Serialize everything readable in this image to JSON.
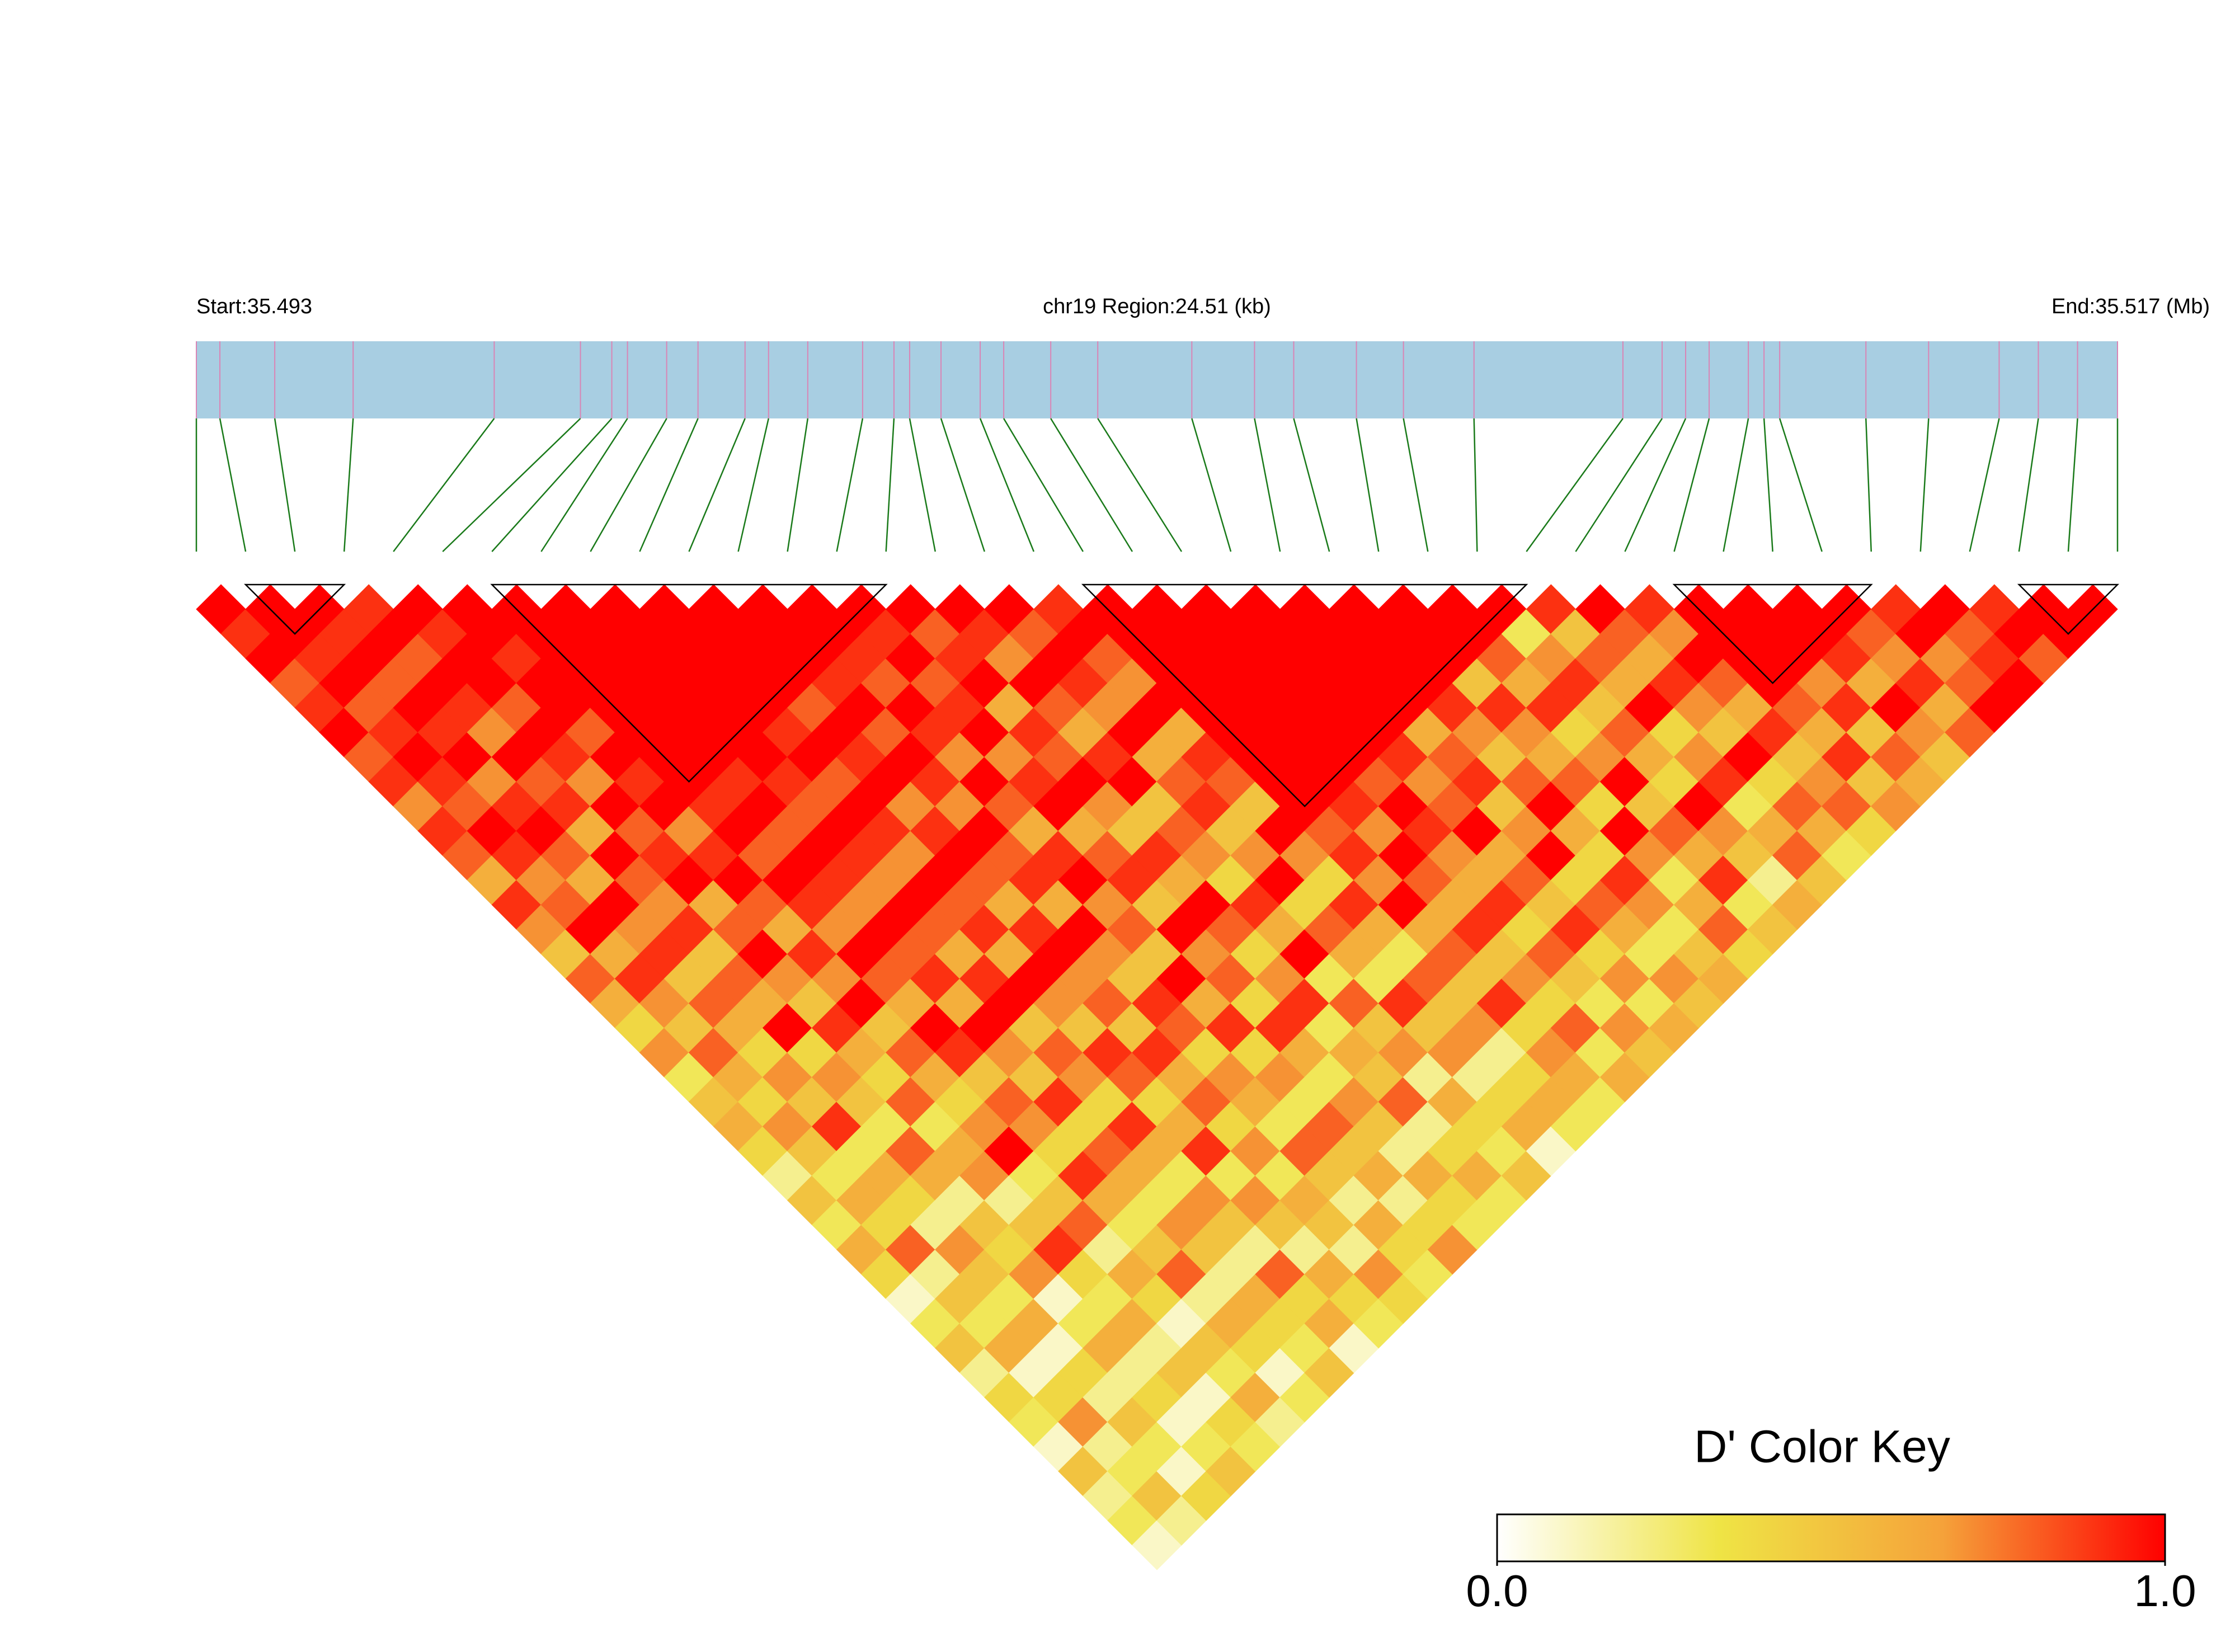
{
  "chart_data": {
    "type": "heatmap",
    "start_label": "Start:35.493",
    "title": "chr19 Region:24.51 (kb)",
    "end_label": "End:35.517 (Mb)",
    "xlim": [
      0,
      24.51
    ],
    "snp_positions": [
      0,
      0.3,
      1.0,
      2.0,
      3.8,
      4.9,
      5.3,
      5.5,
      6.0,
      6.4,
      7.0,
      7.3,
      7.8,
      8.5,
      8.9,
      9.1,
      9.5,
      10.0,
      10.3,
      10.9,
      11.5,
      12.7,
      13.5,
      14.0,
      14.8,
      15.4,
      16.3,
      18.2,
      18.7,
      19.0,
      19.3,
      19.8,
      20.0,
      20.2,
      21.3,
      22.1,
      23.0,
      23.5,
      24.0,
      24.51
    ],
    "bar_color": "#a8cee2",
    "snp_line_color": "#d985b5",
    "connector_color": "#1a7a1a",
    "block_outline_color": "#000000",
    "blocks": [
      [
        1,
        3
      ],
      [
        6,
        14
      ],
      [
        18,
        27
      ],
      [
        30,
        34
      ],
      [
        37,
        39
      ]
    ],
    "ld_matrix": [
      [
        1,
        0.9,
        1,
        0.8,
        0.9,
        1,
        0.8,
        0.9,
        0.7,
        0.9,
        0.8,
        0.6,
        0.9,
        0.7,
        0.5,
        0.8,
        0.6,
        0.4,
        0.7,
        0.3,
        0.5,
        0.6,
        0.4,
        0.2,
        0.5,
        0.3,
        0.6,
        0.4,
        0.1,
        0.3,
        0.5,
        0.2,
        0.4,
        0.3,
        0.1,
        0.5,
        0.2,
        0.3,
        0.1
      ],
      [
        1,
        1,
        0.9,
        1,
        0.8,
        0.9,
        1,
        0.9,
        0.8,
        1,
        0.9,
        0.7,
        0.8,
        1,
        0.6,
        0.9,
        0.7,
        0.5,
        0.8,
        0.6,
        0.4,
        0.7,
        0.5,
        0.3,
        0.6,
        0.4,
        0.8,
        0.2,
        0.5,
        0.3,
        0.6,
        0.1,
        0.4,
        0.7,
        0.2,
        0.3,
        0.5,
        0.2
      ],
      [
        1,
        0.9,
        1,
        0.8,
        1,
        0.9,
        1,
        0.7,
        0.9,
        1,
        0.8,
        0.6,
        1,
        0.7,
        0.9,
        0.5,
        0.8,
        0.6,
        0.4,
        0.7,
        0.5,
        0.9,
        0.3,
        0.6,
        0.4,
        0.2,
        0.7,
        0.5,
        0.3,
        0.6,
        0.1,
        0.4,
        0.2,
        0.5,
        0.3,
        0.1,
        0.4
      ],
      [
        0.9,
        1,
        0.8,
        1,
        0.9,
        0.7,
        1,
        0.8,
        0.9,
        0.6,
        1,
        0.8,
        0.7,
        0.9,
        0.5,
        0.8,
        0.6,
        1,
        0.4,
        0.7,
        0.5,
        0.3,
        0.8,
        0.6,
        0.2,
        0.5,
        0.4,
        0.7,
        0.1,
        0.3,
        0.6,
        0.2,
        0.4,
        0.1,
        0.3,
        0.5
      ],
      [
        1,
        0.9,
        1,
        1,
        0.8,
        1,
        0.9,
        0.7,
        1,
        0.8,
        0.9,
        1,
        0.6,
        0.8,
        1,
        0.7,
        0.5,
        0.9,
        0.6,
        0.4,
        0.8,
        0.3,
        0.6,
        0.7,
        0.2,
        0.5,
        0.9,
        0.4,
        0.3,
        0.6,
        0.2,
        0.5,
        0.1,
        0.4,
        0.3
      ],
      [
        1,
        1,
        0.9,
        1,
        1,
        0.8,
        1,
        0.9,
        1,
        0.7,
        0.9,
        1,
        0.8,
        0.6,
        0.9,
        0.7,
        1,
        0.5,
        0.8,
        0.6,
        0.4,
        0.7,
        1,
        0.3,
        0.5,
        0.8,
        0.2,
        0.6,
        0.4,
        0.1,
        0.5,
        0.3,
        0.6,
        0.2
      ],
      [
        1,
        1,
        1,
        1,
        1,
        1,
        1,
        1,
        0.9,
        1,
        0.8,
        1,
        0.9,
        0.7,
        1,
        0.8,
        0.6,
        1,
        0.9,
        0.5,
        0.8,
        0.7,
        0.4,
        0.9,
        0.6,
        0.3,
        0.5,
        0.8,
        0.2,
        0.6,
        0.4,
        0.1,
        0.3
      ],
      [
        1,
        1,
        1,
        1,
        1,
        1,
        1,
        0.9,
        1,
        0.8,
        1,
        0.9,
        0.7,
        1,
        0.8,
        0.9,
        0.6,
        1,
        0.7,
        0.5,
        0.9,
        0.4,
        0.8,
        0.6,
        0.3,
        0.7,
        0.5,
        0.2,
        0.6,
        0.4,
        0.3,
        0.5
      ],
      [
        1,
        1,
        1,
        1,
        1,
        1,
        1,
        0.9,
        0.8,
        1,
        0.9,
        0.7,
        1,
        0.8,
        0.6,
        0.9,
        1,
        0.5,
        0.8,
        0.7,
        0.4,
        0.9,
        0.6,
        0.3,
        0.7,
        0.5,
        0.2,
        0.8,
        0.4,
        0.6,
        0.1
      ],
      [
        1,
        1,
        1,
        1,
        1,
        0.9,
        1,
        0.8,
        1,
        0.9,
        0.7,
        1,
        0.8,
        0.9,
        0.6,
        1,
        0.7,
        0.5,
        0.9,
        0.8,
        0.4,
        0.6,
        0.9,
        0.3,
        0.7,
        0.5,
        0.2,
        0.6,
        0.4,
        0.3
      ],
      [
        1,
        1,
        1,
        1,
        0.8,
        1,
        0.9,
        1,
        0.7,
        0.9,
        1,
        0.8,
        0.6,
        0.9,
        1,
        0.7,
        0.8,
        0.5,
        0.9,
        0.6,
        0.8,
        0.4,
        0.7,
        0.3,
        0.6,
        0.5,
        0.2,
        0.7,
        0.4
      ],
      [
        1,
        1,
        1,
        0.9,
        1,
        0.8,
        1,
        0.9,
        0.7,
        1,
        0.8,
        0.9,
        0.6,
        1,
        0.7,
        0.5,
        0.9,
        0.8,
        0.4,
        0.7,
        0.6,
        0.3,
        0.8,
        0.5,
        0.2,
        0.6,
        0.4,
        0.3
      ],
      [
        1,
        1,
        0.9,
        0.8,
        1,
        0.9,
        0.7,
        1,
        0.8,
        0.6,
        0.9,
        1,
        0.7,
        0.8,
        0.5,
        1,
        0.6,
        0.9,
        0.4,
        0.7,
        0.3,
        0.8,
        0.5,
        0.6,
        0.2,
        0.4,
        0.7
      ],
      [
        1,
        0.9,
        1,
        0.8,
        0.9,
        1,
        0.7,
        0.9,
        1,
        0.6,
        0.8,
        0.9,
        0.5,
        1,
        0.7,
        0.8,
        0.4,
        0.9,
        0.6,
        0.3,
        0.7,
        0.5,
        0.2,
        0.6,
        0.4,
        0.3
      ],
      [
        1,
        0.8,
        0.9,
        1,
        0.6,
        0.9,
        0.8,
        1,
        0.7,
        0.5,
        0.9,
        0.6,
        1,
        0.8,
        0.4,
        0.7,
        0.9,
        0.3,
        0.6,
        0.5,
        0.8,
        0.2,
        0.4,
        0.6,
        0.3
      ],
      [
        1,
        0.9,
        0.7,
        1,
        0.8,
        0.6,
        0.9,
        1,
        0.5,
        0.8,
        0.7,
        0.4,
        0.9,
        0.6,
        1,
        0.3,
        0.8,
        0.5,
        0.7,
        0.2,
        0.6,
        0.4,
        0.3,
        0.5
      ],
      [
        1,
        0.8,
        1,
        0.9,
        0.7,
        1,
        0.6,
        0.8,
        0.9,
        0.5,
        0.7,
        1,
        0.4,
        0.8,
        0.6,
        0.3,
        0.9,
        0.5,
        0.7,
        0.2,
        0.4,
        0.6,
        0.1
      ],
      [
        0.9,
        1,
        0.8,
        0.7,
        1,
        0.6,
        0.9,
        0.8,
        0.5,
        1,
        0.7,
        0.4,
        0.9,
        0.6,
        0.3,
        0.8,
        0.5,
        0.7,
        0.2,
        0.4,
        0.6,
        0.3
      ],
      [
        1,
        1,
        1,
        1,
        1,
        1,
        1,
        1,
        1,
        0.8,
        0.9,
        0.7,
        1,
        0.6,
        0.8,
        0.5,
        0.9,
        0.4,
        0.7,
        0.6,
        0.3
      ],
      [
        1,
        1,
        1,
        1,
        1,
        1,
        1,
        1,
        0.9,
        0.7,
        1,
        0.8,
        0.6,
        0.9,
        0.5,
        0.7,
        0.4,
        0.8,
        0.3,
        0.6
      ],
      [
        1,
        1,
        1,
        1,
        1,
        1,
        1,
        0.8,
        1,
        0.9,
        0.7,
        0.6,
        0.9,
        0.4,
        0.8,
        0.5,
        0.3,
        0.7,
        0.5
      ],
      [
        1,
        1,
        1,
        1,
        1,
        1,
        0.9,
        0.7,
        0.8,
        1,
        0.6,
        0.8,
        0.5,
        0.9,
        0.4,
        0.7,
        0.3,
        0.6
      ],
      [
        1,
        1,
        1,
        1,
        1,
        0.6,
        0.8,
        0.9,
        0.5,
        0.7,
        1,
        0.4,
        0.8,
        0.6,
        0.3,
        0.7,
        0.5
      ],
      [
        1,
        1,
        1,
        1,
        0.9,
        0.7,
        0.5,
        0.8,
        1,
        0.6,
        0.4,
        0.9,
        0.7,
        0.3,
        0.5,
        0.6
      ],
      [
        1,
        1,
        1,
        0.5,
        0.9,
        0.7,
        0.6,
        0.8,
        0.4,
        1,
        0.7,
        0.3,
        0.6,
        0.8,
        0.4
      ],
      [
        1,
        1,
        0.8,
        0.6,
        0.9,
        0.4,
        0.7,
        1,
        0.5,
        0.8,
        0.6,
        0.9,
        0.3,
        0.5
      ],
      [
        1,
        0.3,
        0.7,
        0.9,
        0.5,
        0.8,
        0.6,
        0.4,
        1,
        0.7,
        0.5,
        0.2,
        0.6
      ],
      [
        0.9,
        0.5,
        0.8,
        0.6,
        1,
        0.4,
        0.7,
        0.9,
        0.3,
        0.6,
        0.8,
        0.5
      ],
      [
        1,
        0.8,
        0.6,
        0.9,
        0.7,
        0.5,
        1,
        0.4,
        0.8,
        0.6,
        0.3
      ],
      [
        0.9,
        0.7,
        1,
        0.8,
        0.6,
        0.9,
        0.5,
        0.7,
        0.8,
        0.4
      ],
      [
        1,
        1,
        1,
        1,
        0.8,
        0.6,
        0.9,
        0.5,
        0.7
      ],
      [
        1,
        1,
        1,
        0.7,
        0.9,
        0.5,
        0.8,
        0.6
      ],
      [
        1,
        1,
        0.9,
        0.6,
        1,
        0.7,
        0.5
      ],
      [
        1,
        0.8,
        0.7,
        0.9,
        0.6,
        0.8
      ],
      [
        0.9,
        1,
        0.7,
        0.8,
        1
      ],
      [
        1,
        0.8,
        0.9,
        1
      ],
      [
        0.9,
        1,
        0.8
      ],
      [
        1,
        1
      ],
      [
        1
      ]
    ],
    "colors": [
      "#ffffff",
      "#efe445",
      "#f5a23a",
      "#ff0000"
    ],
    "key_title": "D' Color Key",
    "key_lim": [
      0,
      1
    ],
    "key_ticks": [
      {
        "value": 0,
        "label": "0.0"
      },
      {
        "value": 1,
        "label": "1.0"
      }
    ]
  }
}
